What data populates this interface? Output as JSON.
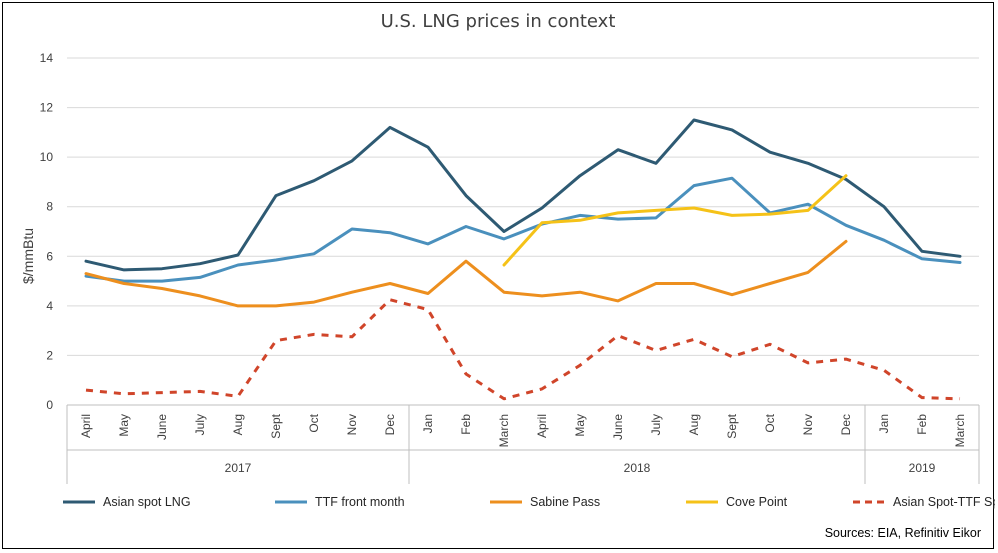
{
  "chart_data": {
    "type": "line",
    "title": "U.S. LNG prices in context",
    "ylabel": "$/mmBtu",
    "xlabel": "",
    "ylim": [
      0,
      14
    ],
    "yticks": [
      0,
      2,
      4,
      6,
      8,
      10,
      12,
      14
    ],
    "grid": true,
    "legend_position": "bottom",
    "categories": [
      "April",
      "May",
      "June",
      "July",
      "Aug",
      "Sept",
      "Oct",
      "Nov",
      "Dec",
      "Jan",
      "Feb",
      "March",
      "April",
      "May",
      "June",
      "July",
      "Aug",
      "Sept",
      "Oct",
      "Nov",
      "Dec",
      "Jan",
      "Feb",
      "March"
    ],
    "year_groups": [
      {
        "label": "2017",
        "start": 0,
        "end": 8
      },
      {
        "label": "2018",
        "start": 9,
        "end": 20
      },
      {
        "label": "2019",
        "start": 21,
        "end": 23
      }
    ],
    "series": [
      {
        "name": "Asian spot LNG",
        "color": "#2e5a73",
        "dashed": false,
        "values": [
          5.8,
          5.45,
          5.5,
          5.7,
          6.05,
          8.45,
          9.05,
          9.85,
          11.2,
          10.4,
          8.45,
          7.0,
          7.95,
          9.25,
          10.3,
          9.75,
          11.5,
          11.1,
          10.2,
          9.75,
          9.1,
          8.0,
          6.2,
          6.0
        ]
      },
      {
        "name": "TTF front month",
        "color": "#4a90bd",
        "dashed": false,
        "values": [
          5.2,
          5.0,
          5.0,
          5.15,
          5.65,
          5.85,
          6.1,
          7.1,
          6.95,
          6.5,
          7.2,
          6.7,
          7.3,
          7.65,
          7.5,
          7.55,
          8.85,
          9.15,
          7.75,
          8.1,
          7.25,
          6.65,
          5.9,
          5.75
        ]
      },
      {
        "name": "Sabine Pass",
        "color": "#ed8f1e",
        "dashed": false,
        "values": [
          5.3,
          4.9,
          4.7,
          4.4,
          4.0,
          4.0,
          4.15,
          4.55,
          4.9,
          4.5,
          5.8,
          4.55,
          4.4,
          4.55,
          4.2,
          4.9,
          4.9,
          4.45,
          4.9,
          5.35,
          6.6,
          null,
          null,
          null
        ]
      },
      {
        "name": "Cove Point",
        "color": "#f5c218",
        "dashed": false,
        "values": [
          null,
          null,
          null,
          null,
          null,
          null,
          null,
          null,
          null,
          null,
          null,
          5.65,
          7.35,
          7.45,
          7.75,
          7.85,
          7.95,
          7.65,
          7.7,
          7.85,
          9.25,
          null,
          null,
          null
        ]
      },
      {
        "name": "Asian Spot-TTF Spread",
        "color": "#d0452a",
        "dashed": true,
        "values": [
          0.6,
          0.45,
          0.5,
          0.55,
          0.35,
          2.6,
          2.85,
          2.75,
          4.25,
          3.85,
          1.25,
          0.25,
          0.65,
          1.6,
          2.8,
          2.2,
          2.65,
          1.95,
          2.45,
          1.7,
          1.85,
          1.4,
          0.3,
          0.25
        ]
      }
    ],
    "source": "Sources: EIA, Refinitiv Eikor"
  }
}
